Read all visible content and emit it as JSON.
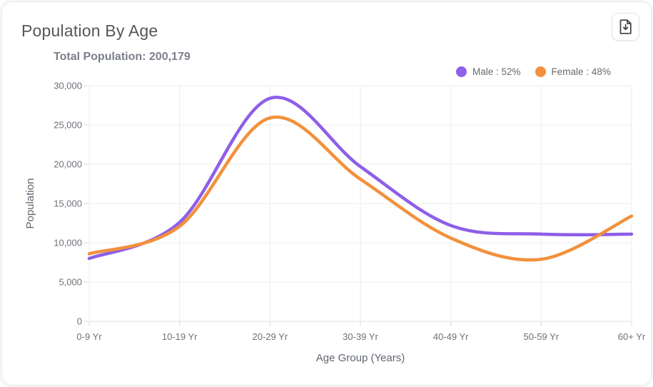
{
  "card": {
    "title": "Population By Age",
    "subtitle": "Total Population: 200,179"
  },
  "toolbar": {
    "download_icon": "file-download"
  },
  "chart_data": {
    "type": "line",
    "title": "Population By Age",
    "total_population": "200,179",
    "categories": [
      "0-9 Yr",
      "10-19 Yr",
      "20-29 Yr",
      "30-39 Yr",
      "40-49 Yr",
      "50-59 Yr",
      "60+ Yr"
    ],
    "series": [
      {
        "name": "Male",
        "share": "52%",
        "legend_label": "Male : 52%",
        "color": "#8E5FE8",
        "values": [
          8000,
          12600,
          28400,
          19700,
          12200,
          11100,
          11100
        ]
      },
      {
        "name": "Female",
        "share": "48%",
        "legend_label": "Female : 48%",
        "color": "#F2913C",
        "values": [
          8600,
          12100,
          25900,
          18100,
          10600,
          7900,
          13400
        ]
      }
    ],
    "xlabel": "Age Group (Years)",
    "ylabel": "Population",
    "ylim": [
      0,
      30000
    ],
    "yticks": [
      0,
      5000,
      10000,
      15000,
      20000,
      25000,
      30000
    ],
    "ytick_labels": [
      "0",
      "5,000",
      "10,000",
      "15,000",
      "20,000",
      "25,000",
      "30,000"
    ],
    "grid": true,
    "smooth": true,
    "legend_position": "top-right",
    "colors": {
      "grid": "#ececf1",
      "axis_line": "#e2e2e8",
      "tick_text": "#6e7079",
      "axis_title_text": "#606670"
    }
  }
}
